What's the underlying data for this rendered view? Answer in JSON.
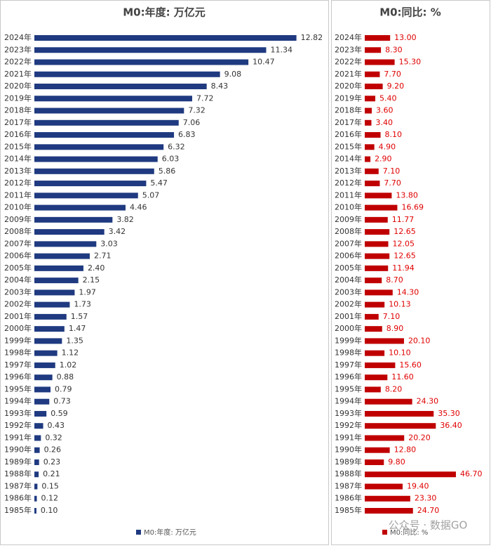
{
  "chart_data": [
    {
      "type": "bar",
      "orientation": "horizontal",
      "title": "M0:年度: 万亿元",
      "categories": [
        "2024年",
        "2023年",
        "2022年",
        "2021年",
        "2020年",
        "2019年",
        "2018年",
        "2017年",
        "2016年",
        "2015年",
        "2014年",
        "2013年",
        "2012年",
        "2011年",
        "2010年",
        "2009年",
        "2008年",
        "2007年",
        "2006年",
        "2005年",
        "2004年",
        "2003年",
        "2002年",
        "2001年",
        "2000年",
        "1999年",
        "1998年",
        "1997年",
        "1996年",
        "1995年",
        "1994年",
        "1993年",
        "1992年",
        "1991年",
        "1990年",
        "1989年",
        "1988年",
        "1987年",
        "1986年",
        "1985年"
      ],
      "series": [
        {
          "name": "M0:年度: 万亿元",
          "color": "#1f3a80",
          "values": [
            12.82,
            11.34,
            10.47,
            9.08,
            8.43,
            7.72,
            7.32,
            7.06,
            6.83,
            6.32,
            6.03,
            5.86,
            5.47,
            5.07,
            4.46,
            3.82,
            3.42,
            3.03,
            2.71,
            2.4,
            2.15,
            1.97,
            1.73,
            1.57,
            1.47,
            1.35,
            1.12,
            1.02,
            0.88,
            0.79,
            0.73,
            0.59,
            0.43,
            0.32,
            0.26,
            0.23,
            0.21,
            0.15,
            0.12,
            0.1
          ],
          "value_labels": [
            "12.82",
            "11.34",
            "10.47",
            "9.08",
            "8.43",
            "7.72",
            "7.32",
            "7.06",
            "6.83",
            "6.32",
            "6.03",
            "5.86",
            "5.47",
            "5.07",
            "4.46",
            "3.82",
            "3.42",
            "3.03",
            "2.71",
            "2.40",
            "2.15",
            "1.97",
            "1.73",
            "1.57",
            "1.47",
            "1.35",
            "1.12",
            "1.02",
            "0.88",
            "0.79",
            "0.73",
            "0.59",
            "0.43",
            "0.32",
            "0.26",
            "0.23",
            "0.21",
            "0.15",
            "0.12",
            "0.10"
          ]
        }
      ],
      "label_color": "#333333",
      "xlim": [
        0,
        14
      ],
      "legend": "bottom"
    },
    {
      "type": "bar",
      "orientation": "horizontal",
      "title": "M0:同比: %",
      "categories": [
        "2024年",
        "2023年",
        "2022年",
        "2021年",
        "2020年",
        "2019年",
        "2018年",
        "2017年",
        "2016年",
        "2015年",
        "2014年",
        "2013年",
        "2012年",
        "2011年",
        "2010年",
        "2009年",
        "2008年",
        "2007年",
        "2006年",
        "2005年",
        "2004年",
        "2003年",
        "2002年",
        "2001年",
        "2000年",
        "1999年",
        "1998年",
        "1997年",
        "1996年",
        "1995年",
        "1994年",
        "1993年",
        "1992年",
        "1991年",
        "1990年",
        "1989年",
        "1988年",
        "1987年",
        "1986年",
        "1985年"
      ],
      "series": [
        {
          "name": "M0:同比: %",
          "color": "#c00000",
          "values": [
            13,
            8.3,
            15.3,
            7.7,
            9.2,
            5.4,
            3.6,
            3.4,
            8.1,
            4.9,
            2.9,
            7.1,
            7.7,
            13.8,
            16.69,
            11.77,
            12.65,
            12.05,
            12.65,
            11.94,
            8.7,
            14.3,
            10.13,
            7.1,
            8.9,
            20.1,
            10.1,
            15.6,
            11.6,
            8.2,
            24.3,
            35.3,
            36.4,
            20.2,
            12.8,
            9.8,
            46.7,
            19.4,
            23.3,
            24.7
          ],
          "value_labels": [
            "13.00",
            "8.30",
            "15.30",
            "7.70",
            "9.20",
            "5.40",
            "3.60",
            "3.40",
            "8.10",
            "4.90",
            "2.90",
            "7.10",
            "7.70",
            "13.80",
            "16.69",
            "11.77",
            "12.65",
            "12.05",
            "12.65",
            "11.94",
            "8.70",
            "14.30",
            "10.13",
            "7.10",
            "8.90",
            "20.10",
            "10.10",
            "15.60",
            "11.60",
            "8.20",
            "24.30",
            "35.30",
            "36.40",
            "20.20",
            "12.80",
            "9.80",
            "46.70",
            "19.40",
            "23.30",
            "24.70"
          ]
        }
      ],
      "label_color": "#e00000",
      "xlim": [
        0,
        60
      ],
      "legend": "bottom"
    }
  ],
  "watermark": "公众号 · 数据GO"
}
